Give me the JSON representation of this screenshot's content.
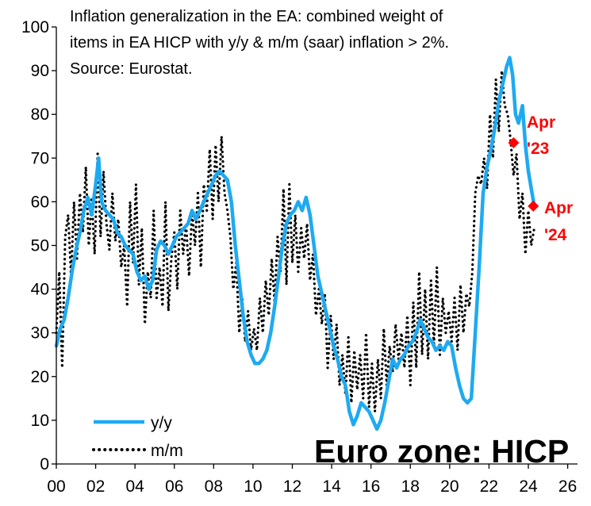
{
  "chart_data": {
    "type": "line",
    "title": "Inflation generalization in the EA: combined weight of items in EA HICP with y/y & m/m (saar) inflation > 2%. Source: Eurostat.",
    "title_lines": [
      "Inflation generalization in the EA: combined weight of",
      "items in EA HICP with y/y & m/m (saar) inflation > 2%.",
      "Source: Eurostat."
    ],
    "watermark": "Euro zone: HICP",
    "xlabel": "",
    "ylabel": "",
    "xlim": [
      2000,
      2026.5
    ],
    "ylim": [
      0,
      100
    ],
    "x_ticks": [
      2000,
      2002,
      2004,
      2006,
      2008,
      2010,
      2012,
      2014,
      2016,
      2018,
      2020,
      2022,
      2024,
      2026
    ],
    "x_tick_labels": [
      "00",
      "02",
      "04",
      "06",
      "08",
      "10",
      "12",
      "14",
      "16",
      "18",
      "20",
      "22",
      "24",
      "26"
    ],
    "y_ticks": [
      0,
      10,
      20,
      30,
      40,
      50,
      60,
      70,
      80,
      90,
      100
    ],
    "y_tick_labels": [
      "0",
      "10",
      "20",
      "30",
      "40",
      "50",
      "60",
      "70",
      "80",
      "90",
      "100"
    ],
    "grid": false,
    "legend": {
      "position": "bottom-left",
      "entries": [
        "y/y",
        "m/m"
      ]
    },
    "series": [
      {
        "name": "y/y",
        "style": "solid",
        "color": "#1eaaf1",
        "points": [
          [
            2000.0,
            27
          ],
          [
            2000.2,
            31
          ],
          [
            2000.4,
            33
          ],
          [
            2000.6,
            38
          ],
          [
            2000.8,
            44
          ],
          [
            2001.0,
            49
          ],
          [
            2001.2,
            53
          ],
          [
            2001.4,
            58
          ],
          [
            2001.6,
            61
          ],
          [
            2001.8,
            57
          ],
          [
            2002.0,
            64
          ],
          [
            2002.15,
            70
          ],
          [
            2002.3,
            60
          ],
          [
            2002.5,
            58
          ],
          [
            2002.7,
            57
          ],
          [
            2002.9,
            56
          ],
          [
            2003.1,
            53
          ],
          [
            2003.3,
            52
          ],
          [
            2003.5,
            50
          ],
          [
            2003.7,
            49
          ],
          [
            2003.9,
            48
          ],
          [
            2004.1,
            44
          ],
          [
            2004.3,
            42
          ],
          [
            2004.5,
            43
          ],
          [
            2004.7,
            40
          ],
          [
            2004.9,
            42
          ],
          [
            2005.1,
            49
          ],
          [
            2005.3,
            51
          ],
          [
            2005.5,
            50
          ],
          [
            2005.7,
            48
          ],
          [
            2005.9,
            50
          ],
          [
            2006.1,
            52
          ],
          [
            2006.3,
            53
          ],
          [
            2006.5,
            54
          ],
          [
            2006.7,
            55
          ],
          [
            2006.9,
            58
          ],
          [
            2007.1,
            56
          ],
          [
            2007.3,
            58
          ],
          [
            2007.5,
            60
          ],
          [
            2007.7,
            62
          ],
          [
            2007.9,
            64
          ],
          [
            2008.1,
            66
          ],
          [
            2008.3,
            67
          ],
          [
            2008.5,
            66
          ],
          [
            2008.7,
            65
          ],
          [
            2008.9,
            60
          ],
          [
            2009.1,
            50
          ],
          [
            2009.3,
            42
          ],
          [
            2009.5,
            34
          ],
          [
            2009.7,
            28
          ],
          [
            2009.9,
            25
          ],
          [
            2010.1,
            23
          ],
          [
            2010.3,
            23
          ],
          [
            2010.5,
            24
          ],
          [
            2010.7,
            26
          ],
          [
            2010.9,
            30
          ],
          [
            2011.1,
            36
          ],
          [
            2011.3,
            43
          ],
          [
            2011.5,
            50
          ],
          [
            2011.7,
            55
          ],
          [
            2011.9,
            57
          ],
          [
            2012.1,
            58
          ],
          [
            2012.3,
            60
          ],
          [
            2012.5,
            58
          ],
          [
            2012.7,
            61
          ],
          [
            2012.9,
            57
          ],
          [
            2013.1,
            50
          ],
          [
            2013.3,
            43
          ],
          [
            2013.5,
            39
          ],
          [
            2013.7,
            35
          ],
          [
            2013.9,
            31
          ],
          [
            2014.1,
            27
          ],
          [
            2014.3,
            24
          ],
          [
            2014.5,
            20
          ],
          [
            2014.7,
            18
          ],
          [
            2014.9,
            12
          ],
          [
            2015.1,
            9
          ],
          [
            2015.3,
            11
          ],
          [
            2015.5,
            14
          ],
          [
            2015.7,
            13
          ],
          [
            2015.9,
            12
          ],
          [
            2016.1,
            10
          ],
          [
            2016.3,
            8
          ],
          [
            2016.5,
            10
          ],
          [
            2016.7,
            14
          ],
          [
            2016.9,
            19
          ],
          [
            2017.1,
            24
          ],
          [
            2017.3,
            22
          ],
          [
            2017.5,
            24
          ],
          [
            2017.7,
            25
          ],
          [
            2017.9,
            27
          ],
          [
            2018.1,
            28
          ],
          [
            2018.3,
            30
          ],
          [
            2018.5,
            33
          ],
          [
            2018.7,
            31
          ],
          [
            2018.9,
            29
          ],
          [
            2019.1,
            28
          ],
          [
            2019.3,
            26
          ],
          [
            2019.5,
            27
          ],
          [
            2019.7,
            26
          ],
          [
            2019.9,
            28
          ],
          [
            2020.1,
            27
          ],
          [
            2020.3,
            22
          ],
          [
            2020.5,
            18
          ],
          [
            2020.7,
            15
          ],
          [
            2020.9,
            14
          ],
          [
            2021.1,
            15
          ],
          [
            2021.3,
            30
          ],
          [
            2021.5,
            45
          ],
          [
            2021.7,
            62
          ],
          [
            2021.9,
            68
          ],
          [
            2022.1,
            72
          ],
          [
            2022.3,
            77
          ],
          [
            2022.5,
            83
          ],
          [
            2022.7,
            87
          ],
          [
            2022.9,
            91
          ],
          [
            2023.05,
            93
          ],
          [
            2023.2,
            89
          ],
          [
            2023.35,
            80
          ],
          [
            2023.5,
            78
          ],
          [
            2023.7,
            82
          ],
          [
            2023.85,
            73
          ],
          [
            2024.0,
            67
          ],
          [
            2024.15,
            63
          ],
          [
            2024.3,
            59
          ]
        ]
      },
      {
        "name": "m/m",
        "style": "dotted",
        "color": "#000000",
        "points": [
          [
            2000.0,
            30
          ],
          [
            2000.15,
            44
          ],
          [
            2000.3,
            22
          ],
          [
            2000.45,
            52
          ],
          [
            2000.6,
            57
          ],
          [
            2000.75,
            43
          ],
          [
            2000.9,
            60
          ],
          [
            2001.05,
            47
          ],
          [
            2001.2,
            62
          ],
          [
            2001.35,
            53
          ],
          [
            2001.5,
            68
          ],
          [
            2001.65,
            50
          ],
          [
            2001.8,
            61
          ],
          [
            2001.95,
            48
          ],
          [
            2002.1,
            71
          ],
          [
            2002.25,
            52
          ],
          [
            2002.4,
            67
          ],
          [
            2002.55,
            55
          ],
          [
            2002.7,
            49
          ],
          [
            2002.85,
            62
          ],
          [
            2003.0,
            51
          ],
          [
            2003.15,
            56
          ],
          [
            2003.3,
            45
          ],
          [
            2003.45,
            50
          ],
          [
            2003.6,
            36
          ],
          [
            2003.75,
            60
          ],
          [
            2003.9,
            46
          ],
          [
            2004.05,
            64
          ],
          [
            2004.2,
            41
          ],
          [
            2004.35,
            54
          ],
          [
            2004.5,
            32
          ],
          [
            2004.65,
            44
          ],
          [
            2004.8,
            38
          ],
          [
            2004.95,
            58
          ],
          [
            2005.1,
            38
          ],
          [
            2005.25,
            45
          ],
          [
            2005.4,
            36
          ],
          [
            2005.55,
            60
          ],
          [
            2005.7,
            35
          ],
          [
            2005.85,
            47
          ],
          [
            2006.0,
            53
          ],
          [
            2006.15,
            40
          ],
          [
            2006.3,
            58
          ],
          [
            2006.45,
            48
          ],
          [
            2006.6,
            55
          ],
          [
            2006.75,
            43
          ],
          [
            2006.9,
            58
          ],
          [
            2007.05,
            50
          ],
          [
            2007.2,
            62
          ],
          [
            2007.35,
            45
          ],
          [
            2007.5,
            64
          ],
          [
            2007.65,
            58
          ],
          [
            2007.8,
            72
          ],
          [
            2007.95,
            56
          ],
          [
            2008.1,
            73
          ],
          [
            2008.25,
            60
          ],
          [
            2008.4,
            75
          ],
          [
            2008.55,
            62
          ],
          [
            2008.7,
            58
          ],
          [
            2008.85,
            52
          ],
          [
            2009.0,
            40
          ],
          [
            2009.15,
            46
          ],
          [
            2009.3,
            30
          ],
          [
            2009.45,
            38
          ],
          [
            2009.6,
            28
          ],
          [
            2009.75,
            35
          ],
          [
            2009.9,
            26
          ],
          [
            2010.05,
            31
          ],
          [
            2010.2,
            26
          ],
          [
            2010.35,
            38
          ],
          [
            2010.5,
            30
          ],
          [
            2010.65,
            42
          ],
          [
            2010.8,
            34
          ],
          [
            2010.95,
            47
          ],
          [
            2011.1,
            37
          ],
          [
            2011.25,
            52
          ],
          [
            2011.4,
            44
          ],
          [
            2011.55,
            63
          ],
          [
            2011.7,
            41
          ],
          [
            2011.85,
            64
          ],
          [
            2012.0,
            46
          ],
          [
            2012.15,
            57
          ],
          [
            2012.3,
            44
          ],
          [
            2012.45,
            54
          ],
          [
            2012.6,
            47
          ],
          [
            2012.75,
            55
          ],
          [
            2012.9,
            42
          ],
          [
            2013.05,
            48
          ],
          [
            2013.2,
            34
          ],
          [
            2013.35,
            40
          ],
          [
            2013.5,
            32
          ],
          [
            2013.65,
            39
          ],
          [
            2013.8,
            22
          ],
          [
            2013.95,
            34
          ],
          [
            2014.1,
            24
          ],
          [
            2014.25,
            32
          ],
          [
            2014.4,
            18
          ],
          [
            2014.55,
            25
          ],
          [
            2014.7,
            16
          ],
          [
            2014.85,
            29
          ],
          [
            2015.0,
            14
          ],
          [
            2015.15,
            26
          ],
          [
            2015.3,
            17
          ],
          [
            2015.45,
            25
          ],
          [
            2015.6,
            15
          ],
          [
            2015.75,
            30
          ],
          [
            2015.9,
            13
          ],
          [
            2016.05,
            23
          ],
          [
            2016.2,
            12
          ],
          [
            2016.35,
            24
          ],
          [
            2016.5,
            15
          ],
          [
            2016.65,
            31
          ],
          [
            2016.8,
            18
          ],
          [
            2016.95,
            27
          ],
          [
            2017.1,
            21
          ],
          [
            2017.25,
            32
          ],
          [
            2017.4,
            24
          ],
          [
            2017.55,
            30
          ],
          [
            2017.7,
            22
          ],
          [
            2017.85,
            34
          ],
          [
            2018.0,
            18
          ],
          [
            2018.15,
            37
          ],
          [
            2018.3,
            22
          ],
          [
            2018.45,
            44
          ],
          [
            2018.6,
            25
          ],
          [
            2018.75,
            40
          ],
          [
            2018.9,
            24
          ],
          [
            2019.05,
            42
          ],
          [
            2019.2,
            27
          ],
          [
            2019.35,
            45
          ],
          [
            2019.5,
            25
          ],
          [
            2019.65,
            38
          ],
          [
            2019.8,
            30
          ],
          [
            2019.95,
            35
          ],
          [
            2020.1,
            28
          ],
          [
            2020.25,
            38
          ],
          [
            2020.4,
            26
          ],
          [
            2020.55,
            41
          ],
          [
            2020.7,
            30
          ],
          [
            2020.85,
            39
          ],
          [
            2021.0,
            36
          ],
          [
            2021.15,
            44
          ],
          [
            2021.3,
            62
          ],
          [
            2021.45,
            66
          ],
          [
            2021.6,
            64
          ],
          [
            2021.75,
            70
          ],
          [
            2021.9,
            63
          ],
          [
            2022.05,
            80
          ],
          [
            2022.2,
            70
          ],
          [
            2022.35,
            88
          ],
          [
            2022.5,
            76
          ],
          [
            2022.65,
            90
          ],
          [
            2022.8,
            82
          ],
          [
            2022.95,
            80
          ],
          [
            2023.1,
            74
          ],
          [
            2023.25,
            66
          ],
          [
            2023.4,
            71
          ],
          [
            2023.55,
            56
          ],
          [
            2023.7,
            62
          ],
          [
            2023.85,
            48
          ],
          [
            2024.0,
            58
          ],
          [
            2024.15,
            50
          ],
          [
            2024.3,
            54
          ]
        ]
      }
    ],
    "annotations": [
      {
        "label_line1": "Apr",
        "label_line2": "'23",
        "x": 2023.25,
        "y": 73.5,
        "color": "#ff0000",
        "marker": "diamond"
      },
      {
        "label_line1": "Apr",
        "label_line2": "'24",
        "x": 2024.25,
        "y": 59,
        "color": "#ff0000",
        "marker": "diamond"
      }
    ]
  }
}
